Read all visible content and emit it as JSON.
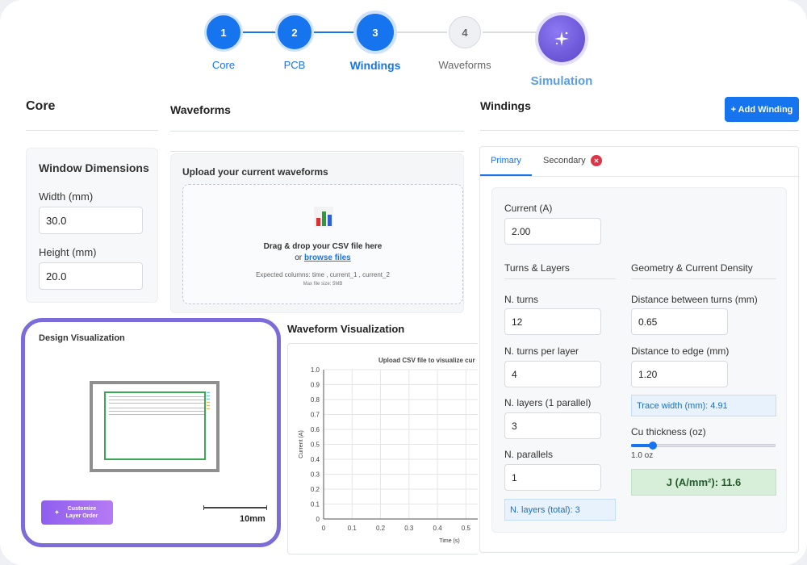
{
  "stepper": {
    "steps": [
      {
        "number": "1",
        "label": "Core"
      },
      {
        "number": "2",
        "label": "PCB"
      },
      {
        "number": "3",
        "label": "Windings"
      },
      {
        "number": "4",
        "label": "Waveforms"
      },
      {
        "number": "",
        "label": "Simulation"
      }
    ],
    "active_index": 2
  },
  "core_panel": {
    "title": "Core",
    "section_title": "Window Dimensions",
    "width_label": "Width (mm)",
    "width_value": "30.0",
    "height_label": "Height (mm)",
    "height_value": "20.0"
  },
  "waveforms_panel": {
    "title": "Waveforms",
    "upload_title": "Upload your current waveforms",
    "drop_text": "Drag & drop your CSV file here",
    "or_text": "or",
    "browse_link": "browse files",
    "expected_columns": "Expected columns: time , current_1 , current_2",
    "max_size": "Max file size: 5MB"
  },
  "waveform_viz": {
    "title": "Waveform Visualization"
  },
  "design_viz": {
    "title": "Design Visualization",
    "customize_button": "Customize Layer Order",
    "scale_label": "10mm"
  },
  "windings_panel": {
    "title": "Windings",
    "add_button": "+ Add Winding",
    "tabs": [
      "Primary",
      "Secondary"
    ],
    "current_label": "Current (A)",
    "current_value": "2.00",
    "turns_section": "Turns & Layers",
    "geometry_section": "Geometry & Current Density",
    "n_turns_label": "N. turns",
    "n_turns_value": "12",
    "turns_per_layer_label": "N. turns per layer",
    "turns_per_layer_value": "4",
    "n_layers_label": "N. layers (1 parallel)",
    "n_layers_value": "3",
    "n_parallels_label": "N. parallels",
    "n_parallels_value": "1",
    "n_layers_total": "N. layers (total): 3",
    "distance_turns_label": "Distance between turns (mm)",
    "distance_turns_value": "0.65",
    "distance_edge_label": "Distance to edge (mm)",
    "distance_edge_value": "1.20",
    "trace_width": "Trace width (mm): 4.91",
    "cu_thickness_label": "Cu thickness (oz)",
    "cu_thickness_value": "1.0 oz",
    "cu_thickness_fraction": 0.15,
    "current_density": "J (A/mm²): 11.6"
  },
  "chart_data": {
    "type": "line",
    "title": "Upload CSV file to visualize cur",
    "xlabel": "Time (s)",
    "ylabel": "Current (A)",
    "x_ticks": [
      "0",
      "0.1",
      "0.2",
      "0.3",
      "0.4",
      "0.5"
    ],
    "y_ticks": [
      "0",
      "0.1",
      "0.2",
      "0.3",
      "0.4",
      "0.5",
      "0.6",
      "0.7",
      "0.8",
      "0.9",
      "1.0"
    ],
    "xlim": [
      0,
      0.55
    ],
    "ylim": [
      0,
      1.0
    ],
    "grid": true,
    "series": []
  },
  "colors": {
    "accent": "#1574ee",
    "simulation": "#6a55d6",
    "design_border": "#7b6cd9",
    "core_outline": "#8f8f8f",
    "winding_outline": "#3aaa52"
  }
}
